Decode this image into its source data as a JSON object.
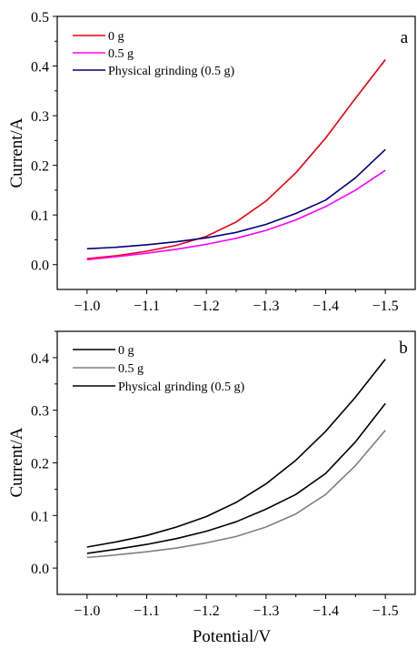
{
  "chart_data": [
    {
      "type": "line",
      "panel_label": "a",
      "ylabel": "Current/A",
      "xlabel": "",
      "xlim": [
        -0.95,
        -1.55
      ],
      "ylim": [
        -0.05,
        0.5
      ],
      "xticks": [
        -1.0,
        -1.1,
        -1.2,
        -1.3,
        -1.4,
        -1.5
      ],
      "xtick_labels": [
        "−1.0",
        "−1.1",
        "−1.2",
        "−1.3",
        "−1.4",
        "−1.5"
      ],
      "yticks": [
        0.0,
        0.1,
        0.2,
        0.3,
        0.4,
        0.5
      ],
      "ytick_labels": [
        "0.0",
        "0.1",
        "0.2",
        "0.3",
        "0.4",
        "0.5"
      ],
      "legend_position": "top-left",
      "series": [
        {
          "name": "0 g",
          "color": "#e8000b",
          "x": [
            -1.0,
            -1.05,
            -1.1,
            -1.15,
            -1.2,
            -1.25,
            -1.3,
            -1.35,
            -1.4,
            -1.45,
            -1.5
          ],
          "y": [
            0.012,
            0.018,
            0.027,
            0.039,
            0.057,
            0.086,
            0.128,
            0.185,
            0.255,
            0.335,
            0.413
          ]
        },
        {
          "name": "0.5 g",
          "color": "#ff00ff",
          "x": [
            -1.0,
            -1.05,
            -1.1,
            -1.15,
            -1.2,
            -1.25,
            -1.3,
            -1.35,
            -1.4,
            -1.45,
            -1.5
          ],
          "y": [
            0.01,
            0.016,
            0.023,
            0.031,
            0.041,
            0.053,
            0.069,
            0.09,
            0.117,
            0.15,
            0.19
          ]
        },
        {
          "name": "Physical grinding (0.5 g)",
          "color": "#00007a",
          "x": [
            -1.0,
            -1.05,
            -1.1,
            -1.15,
            -1.2,
            -1.25,
            -1.3,
            -1.35,
            -1.4,
            -1.45,
            -1.5
          ],
          "y": [
            0.032,
            0.035,
            0.04,
            0.046,
            0.054,
            0.065,
            0.081,
            0.103,
            0.13,
            0.175,
            0.232
          ]
        }
      ]
    },
    {
      "type": "line",
      "panel_label": "b",
      "ylabel": "Current/A",
      "xlabel": "Potential/V",
      "xlim": [
        -0.95,
        -1.55
      ],
      "ylim": [
        -0.05,
        0.45
      ],
      "xticks": [
        -1.0,
        -1.1,
        -1.2,
        -1.3,
        -1.4,
        -1.5
      ],
      "xtick_labels": [
        "−1.0",
        "−1.1",
        "−1.2",
        "−1.3",
        "−1.4",
        "−1.5"
      ],
      "yticks": [
        0.0,
        0.1,
        0.2,
        0.3,
        0.4
      ],
      "ytick_labels": [
        "0.0",
        "0.1",
        "0.2",
        "0.3",
        "0.4"
      ],
      "legend_position": "top-left",
      "series": [
        {
          "name": "0 g",
          "color": "#000000",
          "x": [
            -1.0,
            -1.05,
            -1.1,
            -1.15,
            -1.2,
            -1.25,
            -1.3,
            -1.35,
            -1.4,
            -1.45,
            -1.5
          ],
          "y": [
            0.04,
            0.05,
            0.062,
            0.078,
            0.098,
            0.125,
            0.16,
            0.205,
            0.26,
            0.325,
            0.397
          ]
        },
        {
          "name": "0.5 g",
          "color": "#808080",
          "x": [
            -1.0,
            -1.05,
            -1.1,
            -1.15,
            -1.2,
            -1.25,
            -1.3,
            -1.35,
            -1.4,
            -1.45,
            -1.5
          ],
          "y": [
            0.02,
            0.025,
            0.031,
            0.038,
            0.048,
            0.06,
            0.078,
            0.103,
            0.14,
            0.195,
            0.262
          ]
        },
        {
          "name": "Physical grinding (0.5 g)",
          "color": "#000000",
          "x": [
            -1.0,
            -1.05,
            -1.1,
            -1.15,
            -1.2,
            -1.25,
            -1.3,
            -1.35,
            -1.4,
            -1.45,
            -1.5
          ],
          "y": [
            0.028,
            0.036,
            0.045,
            0.056,
            0.07,
            0.088,
            0.112,
            0.14,
            0.18,
            0.24,
            0.313
          ]
        }
      ]
    }
  ]
}
